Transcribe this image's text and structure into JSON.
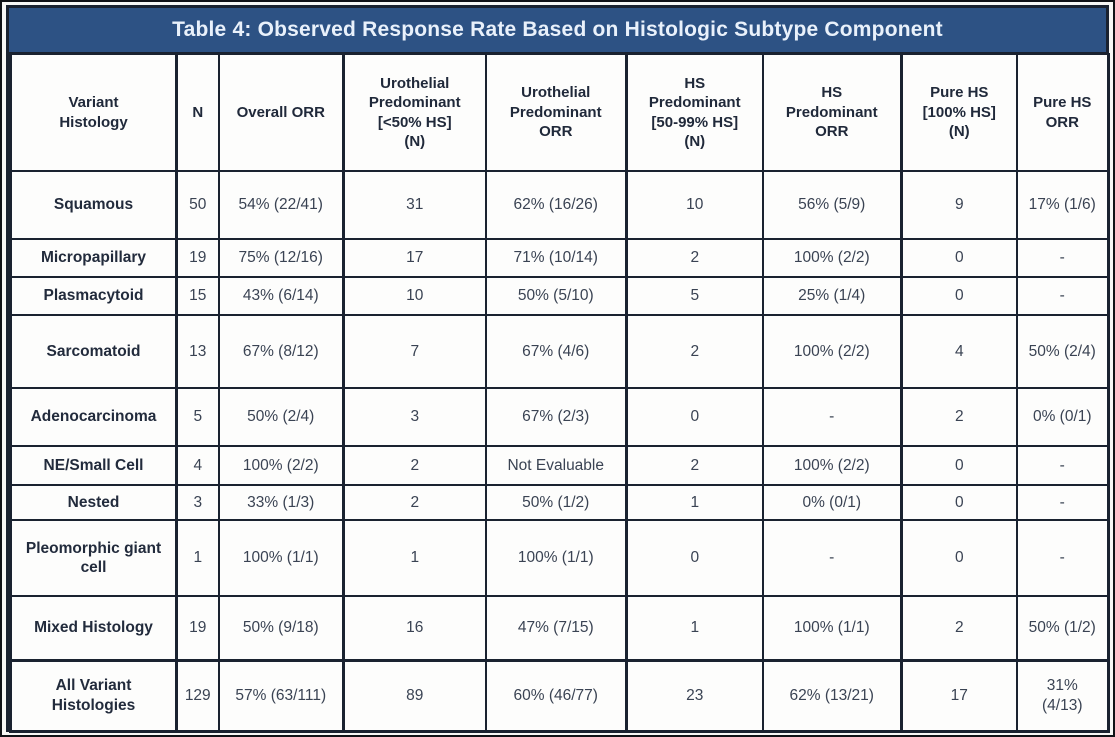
{
  "title": "Table 4: Observed Response Rate Based on Histologic Subtype Component",
  "colors": {
    "title_bar_bg": "#2d5284",
    "title_text": "#e9f1fb",
    "border": "#1a2230",
    "header_text": "#20293a",
    "body_text": "#3a4353"
  },
  "table": {
    "columns": [
      "Variant\nHistology",
      "N",
      "Overall ORR",
      "Urothelial\nPredominant\n[<50% HS]\n(N)",
      "Urothelial\nPredominant\nORR",
      "HS\nPredominant\n[50-99%  HS]\n(N)",
      "HS\nPredominant\nORR",
      "Pure HS\n[100% HS]\n(N)",
      "Pure HS\nORR"
    ],
    "rows": [
      [
        "Squamous",
        "50",
        "54% (22/41)",
        "31",
        "62% (16/26)",
        "10",
        "56% (5/9)",
        "9",
        "17% (1/6)"
      ],
      [
        "Micropapillary",
        "19",
        "75% (12/16)",
        "17",
        "71% (10/14)",
        "2",
        "100% (2/2)",
        "0",
        "-"
      ],
      [
        "Plasmacytoid",
        "15",
        "43% (6/14)",
        "10",
        "50% (5/10)",
        "5",
        "25% (1/4)",
        "0",
        "-"
      ],
      [
        "Sarcomatoid",
        "13",
        "67% (8/12)",
        "7",
        "67% (4/6)",
        "2",
        "100% (2/2)",
        "4",
        "50% (2/4)"
      ],
      [
        "Adenocarcinoma",
        "5",
        "50% (2/4)",
        "3",
        "67% (2/3)",
        "0",
        "-",
        "2",
        "0% (0/1)"
      ],
      [
        "NE/Small Cell",
        "4",
        "100% (2/2)",
        "2",
        "Not Evaluable",
        "2",
        "100% (2/2)",
        "0",
        "-"
      ],
      [
        "Nested",
        "3",
        "33% (1/3)",
        "2",
        "50% (1/2)",
        "1",
        "0% (0/1)",
        "0",
        "-"
      ],
      [
        "Pleomorphic giant cell",
        "1",
        "100% (1/1)",
        "1",
        "100% (1/1)",
        "0",
        "-",
        "0",
        "-"
      ],
      [
        "Mixed Histology",
        "19",
        "50% (9/18)",
        "16",
        "47% (7/15)",
        "1",
        "100% (1/1)",
        "2",
        "50% (1/2)"
      ],
      [
        "All Variant Histologies",
        "129",
        "57% (63/111)",
        "89",
        "60% (46/77)",
        "23",
        "62% (13/21)",
        "17",
        "31%\n(4/13)"
      ]
    ]
  }
}
